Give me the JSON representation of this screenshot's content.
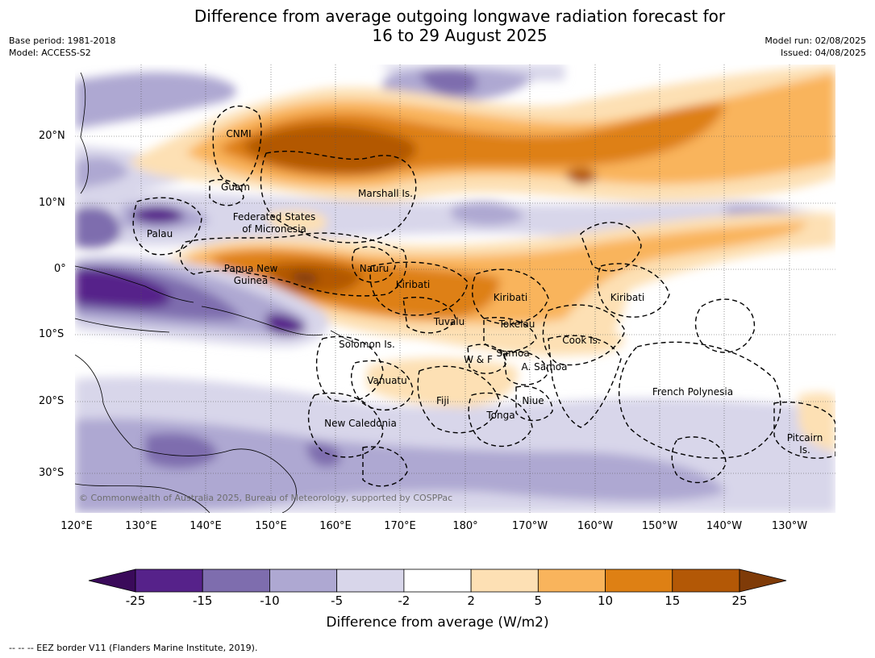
{
  "title_line1": "Difference from average outgoing longwave radiation forecast for",
  "title_line2": "16 to 29 August 2025",
  "meta_left": {
    "base_period": "Base period: 1981-2018",
    "model": "Model: ACCESS-S2"
  },
  "meta_right": {
    "model_run": "Model run: 02/08/2025",
    "issued": "Issued: 04/08/2025"
  },
  "lat_ticks": [
    "20°N",
    "10°N",
    "0°",
    "10°S",
    "20°S",
    "30°S"
  ],
  "lon_ticks": [
    "120°E",
    "130°E",
    "140°E",
    "150°E",
    "160°E",
    "170°E",
    "180°",
    "170°W",
    "160°W",
    "150°W",
    "140°W",
    "130°W"
  ],
  "region_labels": {
    "cnmi": "CNMI",
    "guam": "Guam",
    "marshall": "Marshall Is.",
    "fsm_line1": "Federated States",
    "fsm_line2": "of Micronesia",
    "palau": "Palau",
    "png_line1": "Papua New",
    "png_line2": "Guinea",
    "nauru": "Nauru",
    "kiribati_w": "Kiribati",
    "kiribati_c": "Kiribati",
    "kiribati_e": "Kiribati",
    "tuvalu": "Tuvalu",
    "tokelau": "Tokelau",
    "cook": "Cook Is.",
    "solomon": "Solomon Is.",
    "wf": "W & F",
    "samoa": "Samoa",
    "asamoa": "A. Samoa",
    "vanuatu": "Vanuatu",
    "fiji": "Fiji",
    "niue": "Niue",
    "tonga": "Tonga",
    "french_poly": "French Polynesia",
    "newcal": "New Caledonia",
    "pitcairn_line1": "Pitcairn",
    "pitcairn_line2": "Is."
  },
  "copyright": "© Commonwealth of Australia 2025, Bureau of Meteorology, supported by COSPPac",
  "colorbar": {
    "title": "Difference from average (W/m2)",
    "ticks": [
      "-25",
      "-15",
      "-10",
      "-5",
      "-2",
      "2",
      "5",
      "10",
      "15",
      "25"
    ],
    "colors": [
      "#3a0a5a",
      "#56228a",
      "#7e6dae",
      "#aea8d2",
      "#d8d6ea",
      "#ffffff",
      "#fde0b4",
      "#f9b45c",
      "#de8014",
      "#b35806",
      "#7f3b08"
    ]
  },
  "footer": "--  --  -- EEZ border V11 (Flanders Marine Institute, 2019)."
}
